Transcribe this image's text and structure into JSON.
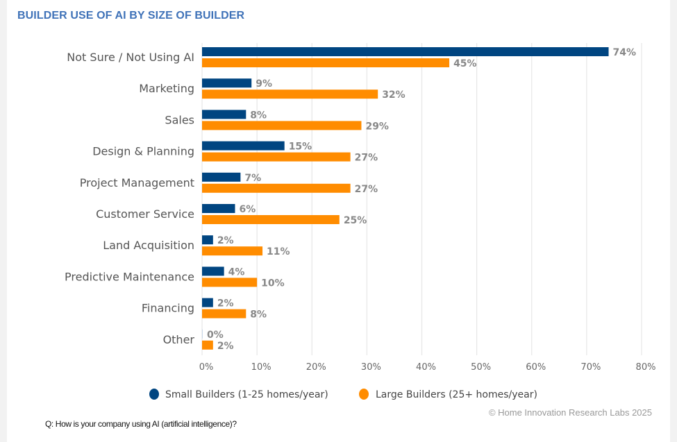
{
  "page": {
    "credit": "© Home Innovation Research Labs 2025",
    "question": "Q: How is your company using AI (artificial intelligence)?"
  },
  "chart_data": {
    "type": "bar",
    "orientation": "horizontal",
    "title": "BUILDER USE OF AI BY SIZE OF BUILDER",
    "xlabel": "",
    "ylabel": "",
    "xlim": [
      0,
      80
    ],
    "grid": true,
    "legend_position": "bottom",
    "x_ticks": [
      "0%",
      "10%",
      "20%",
      "30%",
      "40%",
      "50%",
      "60%",
      "70%",
      "80%"
    ],
    "tick_values": [
      0,
      10,
      20,
      30,
      40,
      50,
      60,
      70,
      80
    ],
    "categories": [
      "Not Sure / Not Using AI",
      "Marketing",
      "Sales",
      "Design & Planning",
      "Project Management",
      "Customer Service",
      "Land Acquisition",
      "Predictive Maintenance",
      "Financing",
      "Other"
    ],
    "series": [
      {
        "name": "Small Builders (1-25 homes/year)",
        "color": "#004581",
        "values": [
          74,
          9,
          8,
          15,
          7,
          6,
          2,
          4,
          2,
          0
        ],
        "labels": [
          "74%",
          "9%",
          "8%",
          "15%",
          "7%",
          "6%",
          "2%",
          "4%",
          "2%",
          "0%"
        ]
      },
      {
        "name": "Large Builders (25+ homes/year)",
        "color": "#ff8c00",
        "values": [
          45,
          32,
          29,
          27,
          27,
          25,
          11,
          10,
          8,
          2
        ],
        "labels": [
          "45%",
          "32%",
          "29%",
          "27%",
          "27%",
          "25%",
          "11%",
          "10%",
          "8%",
          "2%"
        ]
      }
    ]
  }
}
